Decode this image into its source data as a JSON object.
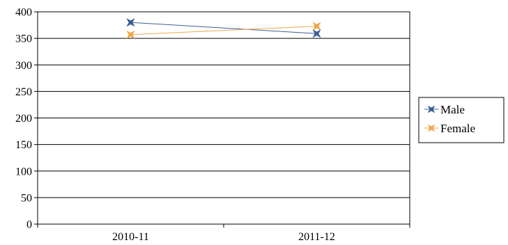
{
  "chart_data": {
    "type": "line",
    "categories": [
      "2010-11",
      "2011-12"
    ],
    "series": [
      {
        "name": "Male",
        "values": [
          380,
          359
        ],
        "color": "#3A5F93"
      },
      {
        "name": "Female",
        "values": [
          357,
          373
        ],
        "color": "#F0A64A"
      }
    ],
    "ylim": [
      0,
      400
    ],
    "yticks": [
      0,
      50,
      100,
      150,
      200,
      250,
      300,
      350,
      400
    ],
    "grid": true,
    "legend": "right",
    "marker": "four-point-star"
  }
}
